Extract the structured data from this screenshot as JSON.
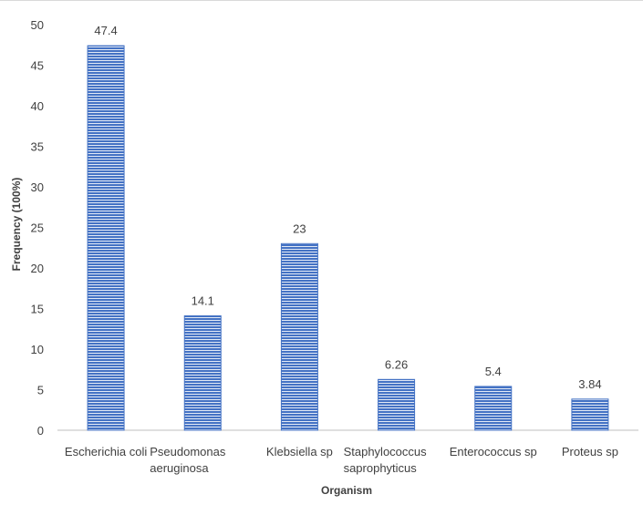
{
  "chart_data": {
    "type": "bar",
    "categories": [
      [
        "Escherichia coli"
      ],
      [
        "Pseudomonas",
        "aeruginosa"
      ],
      [
        "Klebsiella sp"
      ],
      [
        "Staphylococcus",
        "saprophyticus"
      ],
      [
        "Enterococcus sp"
      ],
      [
        "Proteus sp"
      ]
    ],
    "values": [
      47.4,
      14.1,
      23,
      6.26,
      5.4,
      3.84
    ],
    "data_labels": [
      "47.4",
      "14.1",
      "23",
      "6.26",
      "5.4",
      "3.84"
    ],
    "title": "",
    "xlabel": "Organism",
    "ylabel": "Frequency (100%)",
    "ylim": [
      0,
      50
    ],
    "yticks": [
      "0",
      "5",
      "10",
      "15",
      "20",
      "25",
      "30",
      "35",
      "40",
      "45",
      "50"
    ],
    "grid": false,
    "legend": "none",
    "colors": {
      "bar_fill": "#4472c4",
      "bar_stripe": "#ffffff",
      "axis": "#bfbfbf",
      "text": "#404040"
    }
  }
}
